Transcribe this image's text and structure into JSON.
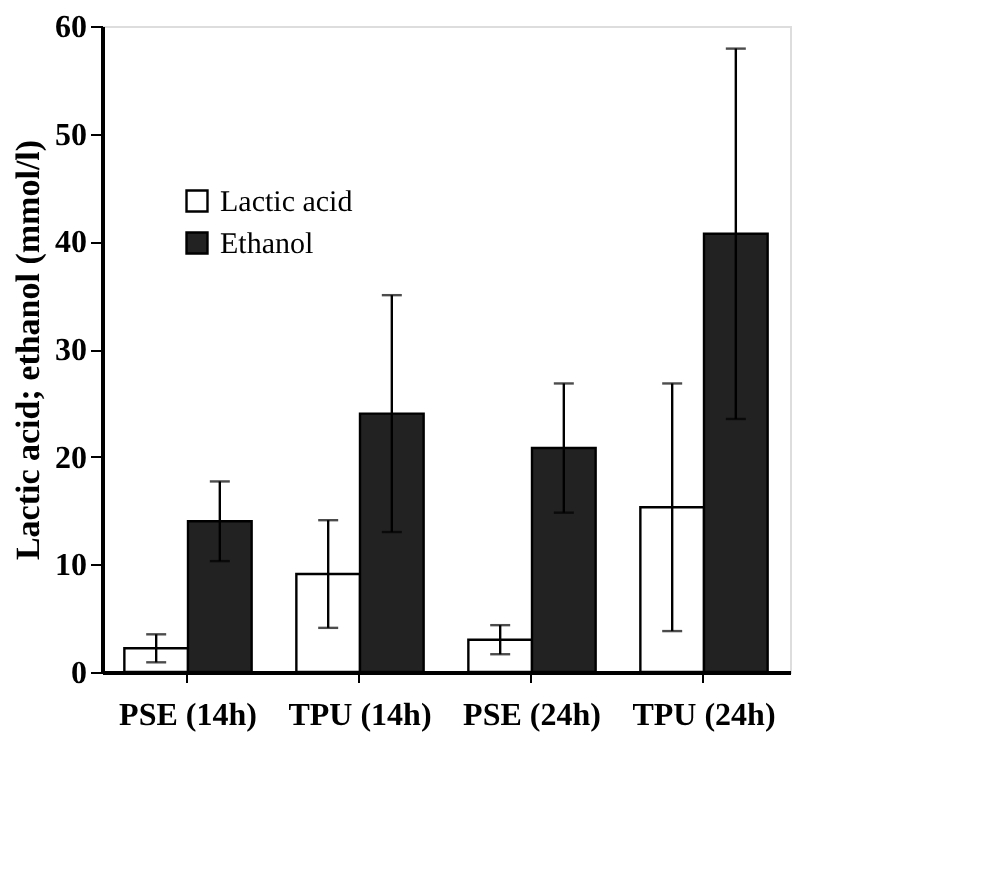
{
  "chart_data": {
    "type": "bar",
    "ylabel": "Lactic acid; ethanol (mmol/l)",
    "categories": [
      "PSE (14h)",
      "TPU (14h)",
      "PSE (24h)",
      "TPU (24h)"
    ],
    "series": [
      {
        "name": "Lactic acid",
        "color": "#ffffff",
        "values": [
          2.2,
          9.1,
          3.0,
          15.3
        ],
        "errors": [
          1.3,
          5,
          1.35,
          11.5
        ]
      },
      {
        "name": "Ethanol",
        "color": "#222222",
        "values": [
          14,
          24,
          20.8,
          40.7
        ],
        "errors": [
          3.7,
          11,
          6,
          17.2
        ]
      }
    ],
    "ylim": [
      0,
      60
    ],
    "yticks": [
      0,
      10,
      20,
      30,
      40,
      50,
      60
    ],
    "grid": false,
    "legend": "top left"
  }
}
